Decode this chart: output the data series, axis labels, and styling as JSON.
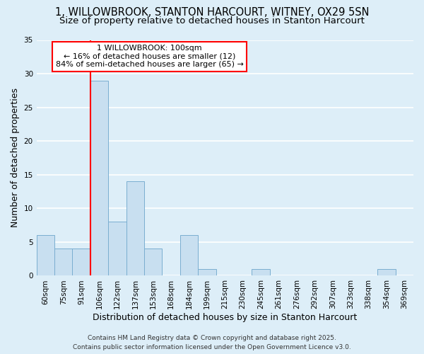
{
  "title_line1": "1, WILLOWBROOK, STANTON HARCOURT, WITNEY, OX29 5SN",
  "title_line2": "Size of property relative to detached houses in Stanton Harcourt",
  "xlabel": "Distribution of detached houses by size in Stanton Harcourt",
  "ylabel": "Number of detached properties",
  "bins": [
    "60sqm",
    "75sqm",
    "91sqm",
    "106sqm",
    "122sqm",
    "137sqm",
    "153sqm",
    "168sqm",
    "184sqm",
    "199sqm",
    "215sqm",
    "230sqm",
    "245sqm",
    "261sqm",
    "276sqm",
    "292sqm",
    "307sqm",
    "323sqm",
    "338sqm",
    "354sqm",
    "369sqm"
  ],
  "values": [
    6,
    4,
    4,
    29,
    8,
    14,
    4,
    0,
    6,
    1,
    0,
    0,
    1,
    0,
    0,
    0,
    0,
    0,
    0,
    1,
    0
  ],
  "bar_color": "#c8dff0",
  "bar_edge_color": "#7aaed0",
  "annotation_text_line1": "1 WILLOWBROOK: 100sqm",
  "annotation_text_line2": "← 16% of detached houses are smaller (12)",
  "annotation_text_line3": "84% of semi-detached houses are larger (65) →",
  "annotation_box_color": "white",
  "annotation_box_edge_color": "red",
  "vline_color": "red",
  "ylim": [
    0,
    35
  ],
  "yticks": [
    0,
    5,
    10,
    15,
    20,
    25,
    30,
    35
  ],
  "background_color": "#ddeef8",
  "grid_color": "white",
  "footnote_line1": "Contains HM Land Registry data © Crown copyright and database right 2025.",
  "footnote_line2": "Contains public sector information licensed under the Open Government Licence v3.0.",
  "title_fontsize": 10.5,
  "subtitle_fontsize": 9.5,
  "axis_label_fontsize": 9,
  "tick_fontsize": 7.5,
  "annotation_fontsize": 8,
  "footnote_fontsize": 6.5
}
